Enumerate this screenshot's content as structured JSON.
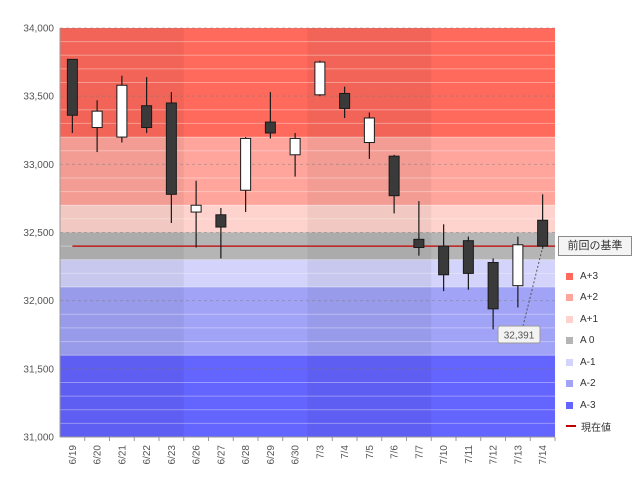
{
  "chart_data": {
    "type": "candlestick",
    "ylim": [
      31000,
      34000
    ],
    "y_ticks": [
      31000,
      31500,
      32000,
      32500,
      33000,
      33500,
      34000
    ],
    "y_tick_labels": [
      "31,000",
      "31,500",
      "32,000",
      "32,500",
      "33,000",
      "33,500",
      "34,000"
    ],
    "categories": [
      "6/19",
      "6/20",
      "6/21",
      "6/22",
      "6/23",
      "6/26",
      "6/27",
      "6/28",
      "6/29",
      "6/30",
      "7/3",
      "7/4",
      "7/5",
      "7/6",
      "7/7",
      "7/10",
      "7/11",
      "7/12",
      "7/13",
      "7/14"
    ],
    "candles": [
      {
        "date": "6/19",
        "open": 33770,
        "high": 33770,
        "low": 33230,
        "close": 33360
      },
      {
        "date": "6/20",
        "open": 33270,
        "high": 33470,
        "low": 33090,
        "close": 33390
      },
      {
        "date": "6/21",
        "open": 33200,
        "high": 33650,
        "low": 33160,
        "close": 33580
      },
      {
        "date": "6/22",
        "open": 33430,
        "high": 33640,
        "low": 33230,
        "close": 33270
      },
      {
        "date": "6/23",
        "open": 33450,
        "high": 33530,
        "low": 32570,
        "close": 32780
      },
      {
        "date": "6/26",
        "open": 32650,
        "high": 32880,
        "low": 32390,
        "close": 32700
      },
      {
        "date": "6/27",
        "open": 32630,
        "high": 32680,
        "low": 32310,
        "close": 32540
      },
      {
        "date": "6/28",
        "open": 32810,
        "high": 33200,
        "low": 32650,
        "close": 33190
      },
      {
        "date": "6/29",
        "open": 33310,
        "high": 33530,
        "low": 33190,
        "close": 33230
      },
      {
        "date": "6/30",
        "open": 33070,
        "high": 33230,
        "low": 32910,
        "close": 33190
      },
      {
        "date": "7/3",
        "open": 33510,
        "high": 33760,
        "low": 33500,
        "close": 33750
      },
      {
        "date": "7/4",
        "open": 33520,
        "high": 33570,
        "low": 33340,
        "close": 33410
      },
      {
        "date": "7/5",
        "open": 33160,
        "high": 33380,
        "low": 33040,
        "close": 33340
      },
      {
        "date": "7/6",
        "open": 33060,
        "high": 33070,
        "low": 32640,
        "close": 32770
      },
      {
        "date": "7/7",
        "open": 32450,
        "high": 32730,
        "low": 32330,
        "close": 32390
      },
      {
        "date": "7/10",
        "open": 32400,
        "high": 32560,
        "low": 32070,
        "close": 32190
      },
      {
        "date": "7/11",
        "open": 32440,
        "high": 32470,
        "low": 32080,
        "close": 32200
      },
      {
        "date": "7/12",
        "open": 32280,
        "high": 32310,
        "low": 31790,
        "close": 31940
      },
      {
        "date": "7/13",
        "open": 32110,
        "high": 32470,
        "low": 31950,
        "close": 32410
      },
      {
        "date": "7/14",
        "open": 32590,
        "high": 32780,
        "low": 32380,
        "close": 32400
      }
    ],
    "bands": [
      {
        "label": "A+3",
        "from": 33200,
        "to": 34000,
        "color": "#ff6a5c"
      },
      {
        "label": "A+2",
        "from": 32700,
        "to": 33200,
        "color": "#ffa59c"
      },
      {
        "label": "A+1",
        "from": 32500,
        "to": 32700,
        "color": "#ffd3cd"
      },
      {
        "label": "A 0",
        "from": 32300,
        "to": 32500,
        "color": "#b5b5b5"
      },
      {
        "label": "A-1",
        "from": 32100,
        "to": 32300,
        "color": "#d3d3fb"
      },
      {
        "label": "A-2",
        "from": 31600,
        "to": 32100,
        "color": "#a1a3f7"
      },
      {
        "label": "A-3",
        "from": 31000,
        "to": 31600,
        "color": "#6464ff"
      }
    ],
    "week_shading_groups": [
      [
        0,
        4
      ],
      [
        10,
        14
      ]
    ],
    "reference_line": {
      "value": 32400,
      "color": "#c00000",
      "label": "現在値"
    },
    "legend_title": "前回の基準",
    "annotation": {
      "label": "32,391",
      "value": 32391,
      "points_to": "7/14"
    }
  }
}
